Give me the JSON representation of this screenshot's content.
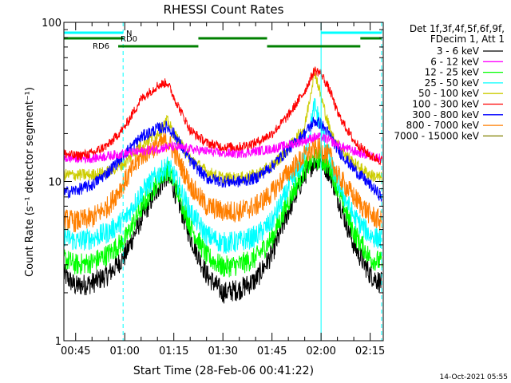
{
  "chart_data": {
    "type": "line",
    "title": "RHESSI Count Rates",
    "xlabel": "Start Time (28-Feb-06 00:41:22)",
    "ylabel": "Count Rate (s⁻¹ detector segment⁻¹)",
    "y_scale": "log",
    "ylim": [
      1,
      100
    ],
    "xlim": [
      "00:41:22",
      "02:19:00"
    ],
    "y_tick_labels": [
      "1",
      "10",
      "100"
    ],
    "x_tick_labels": [
      "00:45",
      "01:00",
      "01:15",
      "01:30",
      "01:45",
      "02:00",
      "02:15"
    ],
    "x_ticks_min": [
      45,
      60,
      75,
      90,
      105,
      120,
      135
    ],
    "legend_header": [
      "Det 1f,3f,4f,5f,6f,9f,",
      "FDecim 1, Att 1"
    ],
    "legend_position": "right",
    "grid": false,
    "series": [
      {
        "name": "3 - 6 keV",
        "color": "#000000",
        "x": [
          41.4,
          45,
          50,
          55,
          60,
          65,
          70,
          73,
          75,
          80,
          85,
          90,
          95,
          100,
          105,
          110,
          115,
          118,
          120,
          123,
          125,
          130,
          135,
          138.5
        ],
        "values": [
          2.6,
          2.2,
          2.3,
          2.6,
          3.4,
          5.8,
          9.0,
          11.0,
          9.0,
          4.5,
          2.6,
          2.0,
          2.1,
          2.4,
          3.5,
          6.5,
          11.0,
          13.5,
          13.5,
          11.0,
          8.0,
          4.0,
          2.6,
          2.3
        ]
      },
      {
        "name": "6 - 12 keV",
        "color": "#ff00ff",
        "x": [
          41.4,
          45,
          50,
          55,
          60,
          65,
          70,
          73,
          75,
          80,
          85,
          90,
          95,
          100,
          105,
          110,
          115,
          118,
          120,
          123,
          125,
          130,
          135,
          138.5
        ],
        "values": [
          14.0,
          14.0,
          14.0,
          14.5,
          15.0,
          15.5,
          16.0,
          16.5,
          16.5,
          16.0,
          15.5,
          15.0,
          15.0,
          15.5,
          16.0,
          17.0,
          18.0,
          19.0,
          19.0,
          18.0,
          17.0,
          15.5,
          14.5,
          14.0
        ]
      },
      {
        "name": "12 - 25 keV",
        "color": "#00ff00",
        "x": [
          41.4,
          45,
          50,
          55,
          60,
          65,
          70,
          73,
          75,
          80,
          85,
          90,
          95,
          100,
          105,
          110,
          115,
          118,
          120,
          123,
          125,
          130,
          135,
          138.5
        ],
        "values": [
          3.3,
          3.0,
          3.1,
          3.5,
          4.3,
          6.8,
          10.0,
          12.0,
          10.0,
          5.3,
          3.4,
          2.9,
          3.0,
          3.3,
          4.4,
          7.5,
          12.0,
          13.8,
          13.8,
          12.0,
          9.0,
          4.8,
          3.3,
          3.1
        ]
      },
      {
        "name": "25 - 50 keV",
        "color": "#00ffff",
        "x": [
          41.4,
          45,
          50,
          55,
          60,
          65,
          70,
          73,
          75,
          80,
          85,
          90,
          95,
          100,
          105,
          110,
          115,
          118,
          120,
          123,
          125,
          130,
          135,
          138.5
        ],
        "values": [
          4.6,
          4.2,
          4.4,
          4.8,
          5.8,
          8.5,
          11.0,
          12.5,
          11.0,
          6.5,
          4.6,
          4.1,
          4.2,
          4.5,
          5.6,
          9.0,
          14.0,
          30.0,
          22.0,
          13.0,
          10.0,
          6.0,
          4.6,
          4.3
        ]
      },
      {
        "name": "50 - 100 keV",
        "color": "#cccc00",
        "x": [
          41.4,
          45,
          50,
          55,
          60,
          65,
          70,
          73,
          75,
          80,
          85,
          90,
          95,
          100,
          105,
          110,
          115,
          118,
          120,
          123,
          125,
          130,
          135,
          138.5
        ],
        "values": [
          11.0,
          11.0,
          11.0,
          11.5,
          13.0,
          17.0,
          20.0,
          24.0,
          20.0,
          14.0,
          11.5,
          10.5,
          10.5,
          11.0,
          12.5,
          16.0,
          22.0,
          50.0,
          34.0,
          20.0,
          17.0,
          13.0,
          11.0,
          10.5
        ]
      },
      {
        "name": "100 - 300 keV",
        "color": "#ff0000",
        "x": [
          41.4,
          45,
          50,
          55,
          60,
          65,
          70,
          73,
          75,
          80,
          85,
          90,
          95,
          100,
          105,
          110,
          115,
          118,
          120,
          123,
          125,
          130,
          135,
          138.5
        ],
        "values": [
          15.0,
          14.5,
          15.0,
          17.0,
          22.0,
          33.0,
          40.0,
          42.0,
          34.0,
          21.0,
          17.5,
          16.5,
          16.5,
          17.5,
          20.0,
          26.0,
          37.0,
          50.0,
          48.0,
          36.0,
          27.0,
          18.0,
          14.5,
          13.5
        ]
      },
      {
        "name": "300 - 800 keV",
        "color": "#0000ff",
        "x": [
          41.4,
          45,
          50,
          55,
          60,
          65,
          70,
          73,
          75,
          80,
          85,
          90,
          95,
          100,
          105,
          110,
          115,
          118,
          120,
          123,
          125,
          130,
          135,
          138.5
        ],
        "values": [
          8.5,
          8.8,
          9.5,
          11.5,
          15.0,
          19.0,
          21.5,
          22.0,
          20.0,
          13.5,
          10.5,
          10.0,
          10.0,
          10.5,
          12.5,
          16.0,
          20.0,
          24.0,
          23.0,
          19.0,
          16.0,
          12.0,
          9.5,
          8.0
        ]
      },
      {
        "name": "800 - 7000 keV",
        "color": "#ff7f00",
        "x": [
          41.4,
          45,
          50,
          55,
          60,
          65,
          70,
          73,
          75,
          80,
          85,
          90,
          95,
          100,
          105,
          110,
          115,
          118,
          120,
          123,
          125,
          130,
          135,
          138.5
        ],
        "values": [
          5.8,
          5.6,
          5.9,
          7.0,
          10.0,
          14.5,
          17.0,
          18.0,
          15.5,
          9.5,
          7.0,
          6.5,
          6.5,
          7.0,
          8.5,
          11.5,
          14.5,
          16.0,
          16.0,
          14.0,
          11.0,
          8.0,
          6.2,
          5.6
        ]
      },
      {
        "name": "7000 - 15000 keV",
        "color": "#808000",
        "x": [],
        "values": []
      }
    ],
    "attenuator_bars": [
      {
        "label": "",
        "color": "#00ffff",
        "row": "top",
        "segments": [
          [
            41.4,
            59.5
          ],
          [
            120.0,
            138.5
          ]
        ]
      },
      {
        "label": "N",
        "color": "#00ffff",
        "row": "top-label"
      },
      {
        "label": "RD0",
        "color": "#008000",
        "row": "middle",
        "segments": [
          [
            41.4,
            59.5
          ],
          [
            82.5,
            103.5
          ],
          [
            132.0,
            138.5
          ]
        ]
      },
      {
        "label": "RD6",
        "color": "#008000",
        "row": "lower",
        "segments": [
          [
            58.0,
            82.5
          ],
          [
            103.5,
            132.0
          ]
        ]
      }
    ],
    "vertical_markers": [
      {
        "x": 41.4,
        "color": "#00ffff",
        "style": "solid"
      },
      {
        "x": 59.5,
        "color": "#00ffff",
        "style": "dashed"
      },
      {
        "x": 120.0,
        "color": "#00ffff",
        "style": "solid"
      },
      {
        "x": 138.5,
        "color": "#00ffff",
        "style": "dashed"
      }
    ]
  },
  "footer": {
    "timestamp": "14-Oct-2021 05:55"
  }
}
